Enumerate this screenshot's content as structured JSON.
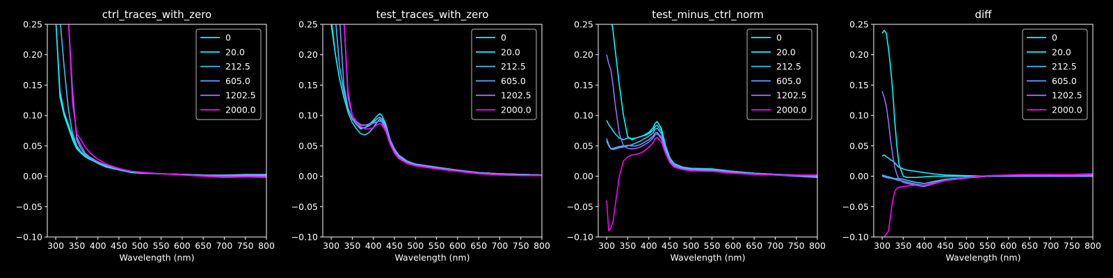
{
  "colors": {
    "background": "#000000",
    "foreground": "#ffffff",
    "series": [
      "#00ffff",
      "#1ae5ff",
      "#3cc3ff",
      "#6aa0ff",
      "#a06aff",
      "#ff00ff"
    ]
  },
  "chart_data": [
    {
      "type": "line",
      "title": "ctrl_traces_with_zero",
      "xlabel": "Wavelength (nm)",
      "ylabel": "",
      "xlim": [
        280,
        800
      ],
      "ylim": [
        -0.1,
        0.25
      ],
      "xticks": [
        "300",
        "350",
        "400",
        "450",
        "500",
        "550",
        "600",
        "650",
        "700",
        "750",
        "800"
      ],
      "yticks": [
        "0.25",
        "0.20",
        "0.15",
        "0.10",
        "0.05",
        "0.00",
        "−0.05",
        "−0.10"
      ],
      "legend_position": "top-right",
      "grid": false,
      "x": [
        300,
        310,
        320,
        330,
        340,
        350,
        360,
        370,
        380,
        390,
        400,
        420,
        440,
        460,
        480,
        500,
        550,
        600,
        650,
        700,
        750,
        800
      ],
      "series": [
        {
          "name": "0",
          "values": [
            0.26,
            0.13,
            0.1,
            0.08,
            0.06,
            0.045,
            0.038,
            0.032,
            0.028,
            0.025,
            0.021,
            0.015,
            0.012,
            0.009,
            0.006,
            0.005,
            0.004,
            0.003,
            0.002,
            0.001,
            0.001,
            0.001
          ]
        },
        {
          "name": "20.0",
          "values": [
            0.26,
            0.14,
            0.105,
            0.085,
            0.065,
            0.048,
            0.04,
            0.034,
            0.03,
            0.026,
            0.022,
            0.016,
            0.013,
            0.009,
            0.007,
            0.006,
            0.004,
            0.003,
            0.002,
            0.001,
            0.001,
            0.001
          ]
        },
        {
          "name": "212.5",
          "values": [
            null,
            0.26,
            0.18,
            0.11,
            0.07,
            0.05,
            0.04,
            0.034,
            0.03,
            0.026,
            0.022,
            0.017,
            0.013,
            0.01,
            0.007,
            0.006,
            0.004,
            0.003,
            0.002,
            0.002,
            0.002,
            0.002
          ]
        },
        {
          "name": "605.0",
          "values": [
            null,
            null,
            null,
            0.26,
            0.14,
            0.06,
            0.045,
            0.036,
            0.031,
            0.027,
            0.023,
            0.018,
            0.014,
            0.011,
            0.008,
            0.006,
            0.004,
            0.003,
            0.002,
            0.002,
            0.003,
            0.003
          ]
        },
        {
          "name": "1202.5",
          "values": [
            null,
            null,
            null,
            0.26,
            0.13,
            0.065,
            0.05,
            0.038,
            0.032,
            0.028,
            0.024,
            0.018,
            0.014,
            0.011,
            0.008,
            0.006,
            0.004,
            0.003,
            0.001,
            0.0,
            0.0,
            0.0
          ]
        },
        {
          "name": "2000.0",
          "values": [
            null,
            null,
            null,
            0.26,
            0.12,
            0.07,
            0.06,
            0.048,
            0.04,
            0.033,
            0.028,
            0.02,
            0.015,
            0.011,
            0.008,
            0.007,
            0.004,
            0.002,
            0.0,
            -0.002,
            -0.001,
            -0.002
          ]
        }
      ]
    },
    {
      "type": "line",
      "title": "test_traces_with_zero",
      "xlabel": "Wavelength (nm)",
      "ylabel": "",
      "xlim": [
        280,
        800
      ],
      "ylim": [
        -0.1,
        0.25
      ],
      "xticks": [
        "300",
        "350",
        "400",
        "450",
        "500",
        "550",
        "600",
        "650",
        "700",
        "750",
        "800"
      ],
      "yticks": [
        "0.25",
        "0.20",
        "0.15",
        "0.10",
        "0.05",
        "0.00",
        "−0.05",
        "−0.10"
      ],
      "legend_position": "top-right",
      "grid": false,
      "x": [
        300,
        310,
        320,
        330,
        340,
        350,
        360,
        370,
        380,
        390,
        400,
        410,
        415,
        420,
        430,
        440,
        450,
        460,
        480,
        500,
        550,
        600,
        650,
        700,
        750,
        800
      ],
      "series": [
        {
          "name": "0",
          "values": [
            0.25,
            0.2,
            0.16,
            0.13,
            0.11,
            0.095,
            0.085,
            0.078,
            0.08,
            0.085,
            0.092,
            0.1,
            0.103,
            0.1,
            0.085,
            0.06,
            0.045,
            0.035,
            0.025,
            0.02,
            0.015,
            0.01,
            0.006,
            0.004,
            0.003,
            0.002
          ]
        },
        {
          "name": "20.0",
          "values": [
            0.26,
            0.2,
            0.16,
            0.13,
            0.105,
            0.088,
            0.078,
            0.07,
            0.068,
            0.072,
            0.08,
            0.09,
            0.094,
            0.09,
            0.078,
            0.056,
            0.042,
            0.033,
            0.023,
            0.019,
            0.014,
            0.009,
            0.006,
            0.004,
            0.003,
            0.002
          ]
        },
        {
          "name": "212.5",
          "values": [
            null,
            0.26,
            0.18,
            0.14,
            0.112,
            0.094,
            0.085,
            0.08,
            0.08,
            0.083,
            0.088,
            0.095,
            0.097,
            0.095,
            0.083,
            0.06,
            0.045,
            0.035,
            0.025,
            0.02,
            0.015,
            0.01,
            0.006,
            0.004,
            0.003,
            0.002
          ]
        },
        {
          "name": "605.0",
          "values": [
            null,
            null,
            0.26,
            0.15,
            0.112,
            0.095,
            0.088,
            0.084,
            0.084,
            0.086,
            0.09,
            0.095,
            0.097,
            0.094,
            0.08,
            0.058,
            0.043,
            0.033,
            0.024,
            0.02,
            0.014,
            0.01,
            0.006,
            0.004,
            0.003,
            0.002
          ]
        },
        {
          "name": "1202.5",
          "values": [
            null,
            null,
            null,
            0.26,
            0.13,
            0.1,
            0.09,
            0.085,
            0.084,
            0.085,
            0.087,
            0.09,
            0.091,
            0.089,
            0.077,
            0.055,
            0.04,
            0.031,
            0.022,
            0.018,
            0.013,
            0.009,
            0.005,
            0.003,
            0.002,
            0.002
          ]
        },
        {
          "name": "2000.0",
          "values": [
            null,
            null,
            null,
            0.26,
            0.14,
            0.1,
            0.088,
            0.082,
            0.078,
            0.078,
            0.08,
            0.085,
            0.087,
            0.085,
            0.073,
            0.052,
            0.038,
            0.029,
            0.021,
            0.017,
            0.012,
            0.008,
            0.004,
            0.002,
            0.001,
            0.001
          ]
        }
      ]
    },
    {
      "type": "line",
      "title": "test_minus_ctrl_norm",
      "xlabel": "Wavelength (nm)",
      "ylabel": "",
      "xlim": [
        280,
        800
      ],
      "ylim": [
        -0.1,
        0.25
      ],
      "xticks": [
        "300",
        "350",
        "400",
        "450",
        "500",
        "550",
        "600",
        "650",
        "700",
        "750",
        "800"
      ],
      "yticks": [
        "0.25",
        "0.20",
        "0.15",
        "0.10",
        "0.05",
        "0.00",
        "−0.05",
        "−0.10"
      ],
      "legend_position": "top-right",
      "grid": false,
      "x": [
        300,
        305,
        310,
        315,
        320,
        330,
        340,
        350,
        360,
        370,
        380,
        390,
        400,
        410,
        415,
        420,
        430,
        440,
        450,
        460,
        480,
        500,
        550,
        600,
        650,
        700,
        750,
        800
      ],
      "series": [
        {
          "name": "0",
          "values": [
            null,
            null,
            0.26,
            0.24,
            0.21,
            0.15,
            0.1,
            0.065,
            0.06,
            0.063,
            0.065,
            0.068,
            0.072,
            0.08,
            0.087,
            0.09,
            0.078,
            0.05,
            0.03,
            0.02,
            0.015,
            0.013,
            0.012,
            0.008,
            0.005,
            0.003,
            0.002,
            0.0
          ]
        },
        {
          "name": "20.0",
          "values": [
            0.092,
            0.085,
            0.08,
            0.075,
            0.07,
            0.063,
            0.06,
            0.063,
            0.062,
            0.063,
            0.065,
            0.067,
            0.07,
            0.076,
            0.082,
            0.084,
            0.074,
            0.048,
            0.03,
            0.021,
            0.015,
            0.013,
            0.012,
            0.008,
            0.005,
            0.003,
            0.002,
            0.0
          ]
        },
        {
          "name": "212.5",
          "values": [
            0.062,
            0.052,
            0.045,
            0.044,
            0.045,
            0.047,
            0.048,
            0.05,
            0.052,
            0.055,
            0.058,
            0.062,
            0.066,
            0.071,
            0.078,
            0.079,
            0.07,
            0.045,
            0.028,
            0.02,
            0.014,
            0.012,
            0.011,
            0.008,
            0.005,
            0.003,
            0.001,
            -0.001
          ]
        },
        {
          "name": "605.0",
          "values": [
            0.058,
            0.05,
            0.045,
            0.046,
            0.047,
            0.049,
            0.05,
            0.051,
            0.05,
            0.05,
            0.052,
            0.056,
            0.06,
            0.066,
            0.071,
            0.072,
            0.064,
            0.042,
            0.026,
            0.018,
            0.013,
            0.011,
            0.01,
            0.007,
            0.004,
            0.002,
            0.0,
            -0.002
          ]
        },
        {
          "name": "1202.5",
          "values": [
            0.2,
            0.185,
            0.175,
            0.15,
            0.12,
            0.07,
            0.05,
            0.046,
            0.045,
            0.046,
            0.048,
            0.052,
            0.056,
            0.063,
            0.068,
            0.07,
            0.062,
            0.04,
            0.024,
            0.017,
            0.012,
            0.01,
            0.009,
            0.006,
            0.004,
            0.002,
            0.001,
            0.0
          ]
        },
        {
          "name": "2000.0",
          "values": [
            -0.04,
            -0.09,
            -0.085,
            -0.075,
            -0.05,
            0.0,
            0.025,
            0.032,
            0.035,
            0.036,
            0.038,
            0.042,
            0.048,
            0.055,
            0.062,
            0.064,
            0.056,
            0.037,
            0.022,
            0.015,
            0.011,
            0.009,
            0.008,
            0.005,
            0.003,
            0.002,
            0.002,
            0.002
          ]
        }
      ]
    },
    {
      "type": "line",
      "title": "diff",
      "xlabel": "Wavelength (nm)",
      "ylabel": "",
      "xlim": [
        280,
        800
      ],
      "ylim": [
        -0.1,
        0.25
      ],
      "xticks": [
        "300",
        "350",
        "400",
        "450",
        "500",
        "550",
        "600",
        "650",
        "700",
        "750",
        "800"
      ],
      "yticks": [
        "0.25",
        "0.20",
        "0.15",
        "0.10",
        "0.05",
        "0.00",
        "−0.05",
        "−0.10"
      ],
      "legend_position": "top-right",
      "grid": false,
      "x": [
        300,
        305,
        310,
        315,
        320,
        325,
        330,
        335,
        340,
        350,
        360,
        380,
        400,
        420,
        450,
        500,
        550,
        600,
        650,
        700,
        750,
        800
      ],
      "series": [
        {
          "name": "0",
          "values": [
            0.235,
            0.24,
            0.235,
            0.21,
            0.18,
            0.14,
            0.09,
            0.05,
            0.02,
            0.0,
            -0.002,
            -0.002,
            -0.001,
            0.0,
            0.0,
            0.0,
            0.0,
            0.0,
            0.0,
            0.0,
            0.0,
            0.0
          ]
        },
        {
          "name": "20.0",
          "values": [
            0.033,
            0.035,
            0.032,
            0.03,
            0.027,
            0.025,
            0.022,
            0.018,
            0.015,
            0.012,
            0.01,
            0.008,
            0.006,
            0.004,
            0.002,
            0.001,
            0.0,
            0.0,
            0.0,
            0.0,
            0.0,
            0.0
          ]
        },
        {
          "name": "212.5",
          "values": [
            0.002,
            0.001,
            0.0,
            -0.001,
            -0.002,
            -0.003,
            -0.004,
            -0.004,
            -0.004,
            -0.005,
            -0.007,
            -0.01,
            -0.012,
            -0.009,
            -0.005,
            -0.002,
            0.0,
            0.0,
            0.0,
            0.0,
            0.0,
            0.001
          ]
        },
        {
          "name": "605.0",
          "values": [
            0.0,
            -0.001,
            -0.002,
            -0.003,
            -0.003,
            -0.004,
            -0.005,
            -0.006,
            -0.007,
            -0.008,
            -0.01,
            -0.013,
            -0.015,
            -0.011,
            -0.006,
            -0.002,
            0.0,
            0.0,
            0.001,
            0.001,
            0.0,
            0.0
          ]
        },
        {
          "name": "1202.5",
          "values": [
            0.14,
            0.13,
            0.115,
            0.09,
            0.06,
            0.035,
            0.015,
            0.003,
            -0.005,
            -0.01,
            -0.012,
            -0.015,
            -0.017,
            -0.013,
            -0.007,
            -0.003,
            0.0,
            0.001,
            0.001,
            0.001,
            0.001,
            0.002
          ]
        },
        {
          "name": "2000.0",
          "values": [
            null,
            -0.1,
            -0.095,
            -0.09,
            -0.065,
            -0.04,
            -0.025,
            -0.02,
            -0.018,
            -0.017,
            -0.016,
            -0.015,
            -0.015,
            -0.012,
            -0.007,
            -0.002,
            0.001,
            0.002,
            0.003,
            0.003,
            0.003,
            0.004
          ]
        }
      ]
    }
  ]
}
